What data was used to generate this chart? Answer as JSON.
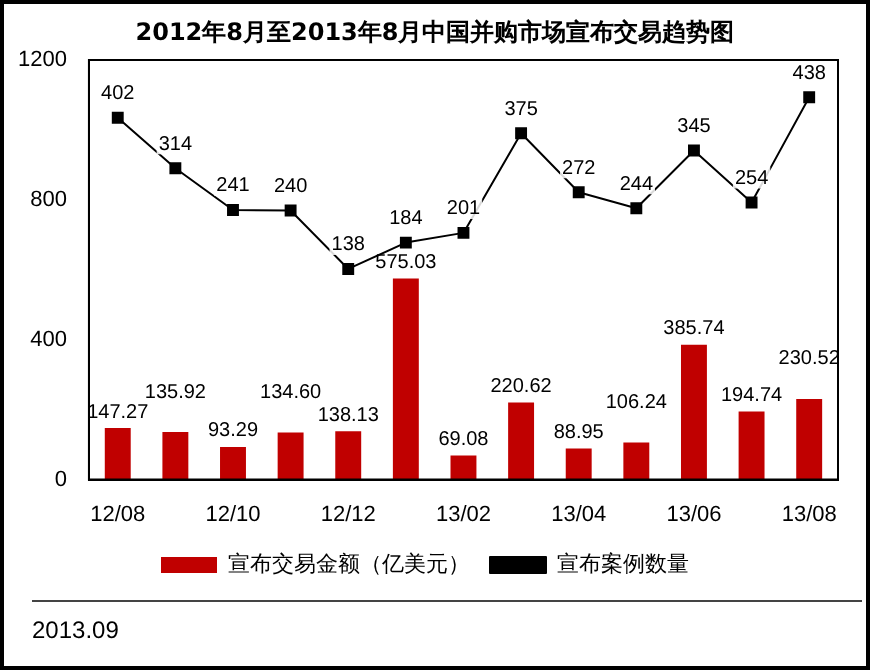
{
  "chart_data": {
    "type": "bar",
    "title": "2012年8月至2013年8月中国并购市场宣布交易趋势图",
    "categories": [
      "12/08",
      null,
      "12/10",
      null,
      "12/12",
      null,
      "13/02",
      null,
      "13/04",
      null,
      "13/06",
      null,
      "13/08"
    ],
    "series": [
      {
        "name": "宣布交易金额（亿美元）",
        "color": "#c00000",
        "values": [
          147.27,
          135.92,
          93.29,
          134.6,
          138.13,
          575.03,
          69.08,
          220.62,
          88.95,
          106.24,
          385.74,
          194.74,
          230.52
        ],
        "value_labels": [
          "147.27",
          "135.92",
          "93.29",
          "134.60",
          "138.13",
          "575.03",
          "69.08",
          "220.62",
          "88.95",
          "106.24",
          "385.74",
          "194.74",
          "230.52"
        ]
      },
      {
        "name": "宣布案例数量",
        "type": "line",
        "axis": "y2",
        "color": "#000000",
        "marker": "square",
        "values": [
          402,
          314,
          241,
          240,
          138,
          184,
          201,
          375,
          272,
          244,
          345,
          254,
          438
        ]
      }
    ],
    "ylim": [
      0,
      1200
    ],
    "yticks": [
      0,
      400,
      800,
      1200
    ],
    "y2lim": [
      -230,
      503
    ],
    "data_labels": true,
    "legend": "bottom",
    "grid": false,
    "annotations": [
      "2013.09"
    ]
  }
}
